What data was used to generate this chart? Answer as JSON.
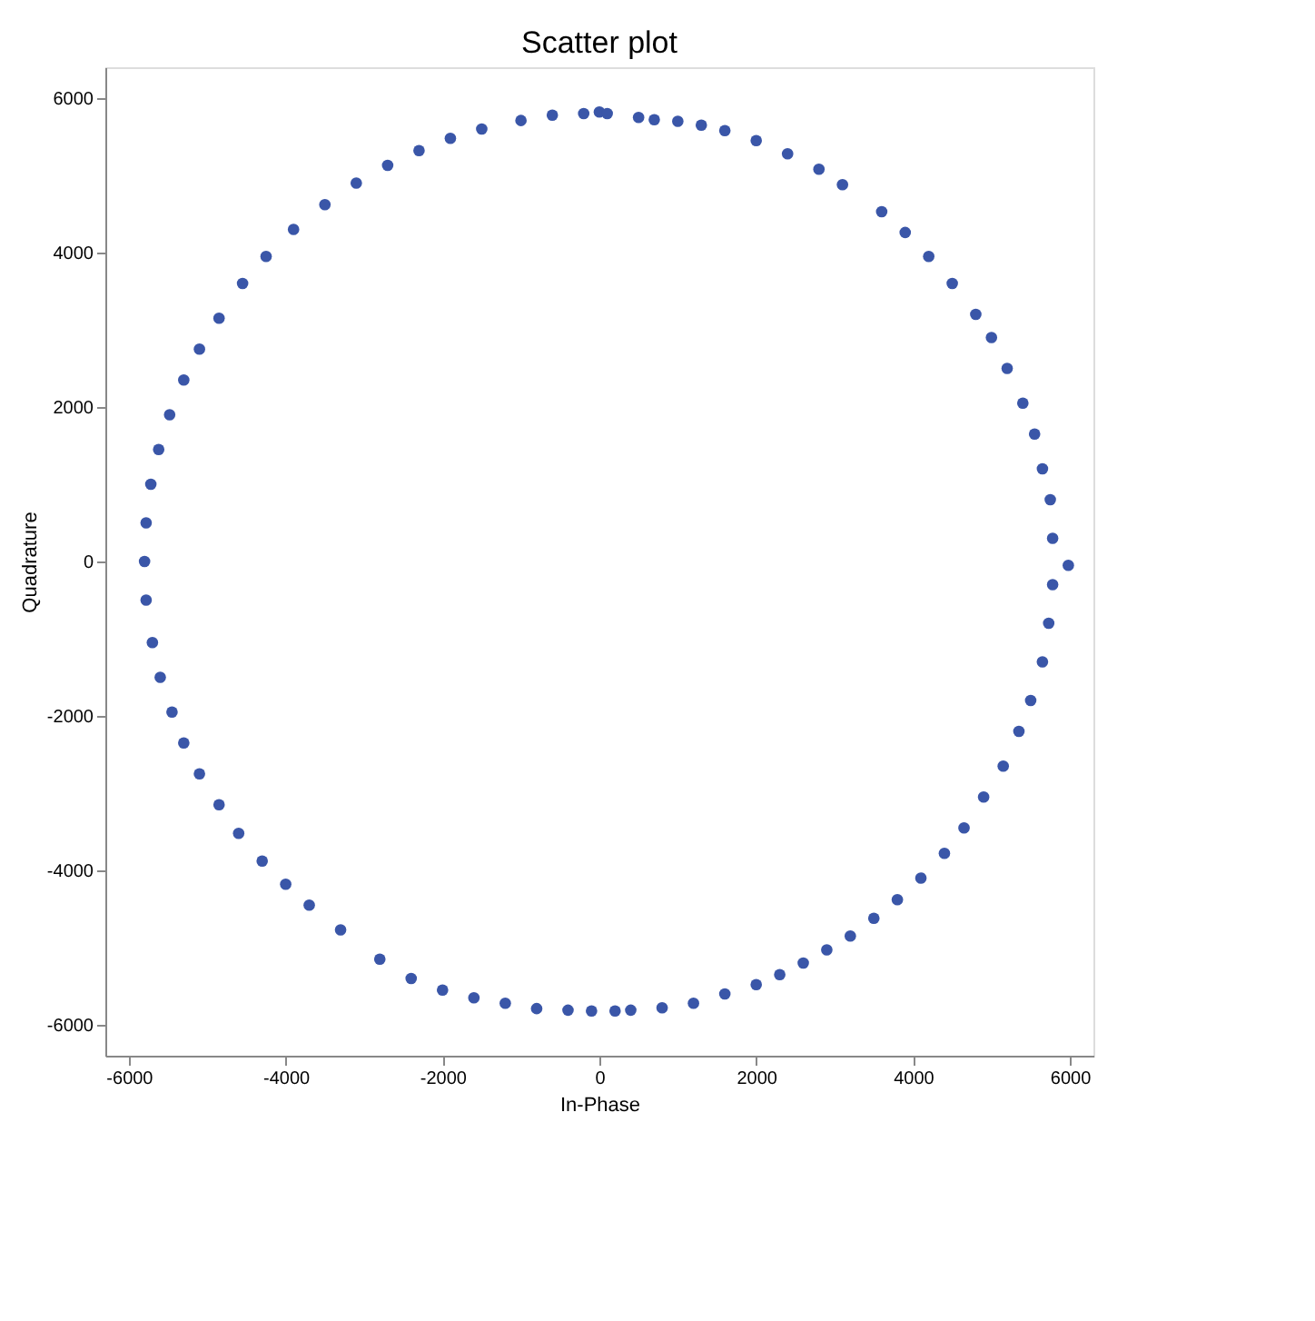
{
  "chart_data": {
    "type": "scatter",
    "title": "Scatter plot",
    "xlabel": "In-Phase",
    "ylabel": "Quadrature",
    "xlim": [
      -6300,
      6300
    ],
    "ylim": [
      -6400,
      6400
    ],
    "xticks": [
      -6000,
      -4000,
      -2000,
      0,
      2000,
      4000,
      6000
    ],
    "yticks": [
      -6000,
      -4000,
      -2000,
      0,
      2000,
      4000,
      6000
    ],
    "grid": false,
    "marker": "circle",
    "series": [
      {
        "color": "#3a56a8",
        "x": [
          -200,
          0,
          100,
          500,
          700,
          1000,
          1300,
          1600,
          2000,
          2400,
          2800,
          3100,
          3600,
          3900,
          4200,
          4500,
          4800,
          5000,
          5200,
          5400,
          5550,
          5650,
          5750,
          5780,
          5980,
          5780,
          5730,
          5650,
          5500,
          5350,
          5150,
          4900,
          4650,
          4400,
          4100,
          3800,
          3500,
          3200,
          2900,
          2600,
          2300,
          2000,
          1600,
          1200,
          800,
          400,
          200,
          -100,
          -400,
          -800,
          -1200,
          -1600,
          -2000,
          -2400,
          -2800,
          -3300,
          -3700,
          -4000,
          -4300,
          -4600,
          -4850,
          -5100,
          -5300,
          -5450,
          -5600,
          -5700,
          -5780,
          -5800,
          -5780,
          -5720,
          -5620,
          -5480,
          -5300,
          -5100,
          -4850,
          -4550,
          -4250,
          -3900,
          -3500,
          -3100,
          -2700,
          -2300,
          -1900,
          -1500,
          -1000,
          -600
        ],
        "values": [
          5800,
          5820,
          5800,
          5750,
          5720,
          5700,
          5650,
          5580,
          5450,
          5280,
          5080,
          4880,
          4530,
          4260,
          3950,
          3600,
          3200,
          2900,
          2500,
          2050,
          1650,
          1200,
          800,
          300,
          -50,
          -300,
          -800,
          -1300,
          -1800,
          -2200,
          -2650,
          -3050,
          -3450,
          -3780,
          -4100,
          -4380,
          -4620,
          -4850,
          -5030,
          -5200,
          -5350,
          -5480,
          -5600,
          -5720,
          -5780,
          -5810,
          -5820,
          -5820,
          -5810,
          -5790,
          -5720,
          -5650,
          -5550,
          -5400,
          -5150,
          -4770,
          -4450,
          -4180,
          -3880,
          -3520,
          -3150,
          -2750,
          -2350,
          -1950,
          -1500,
          -1050,
          -500,
          0,
          500,
          1000,
          1450,
          1900,
          2350,
          2750,
          3150,
          3600,
          3950,
          4300,
          4620,
          4900,
          5130,
          5320,
          5480,
          5600,
          5710,
          5780
        ]
      }
    ]
  }
}
